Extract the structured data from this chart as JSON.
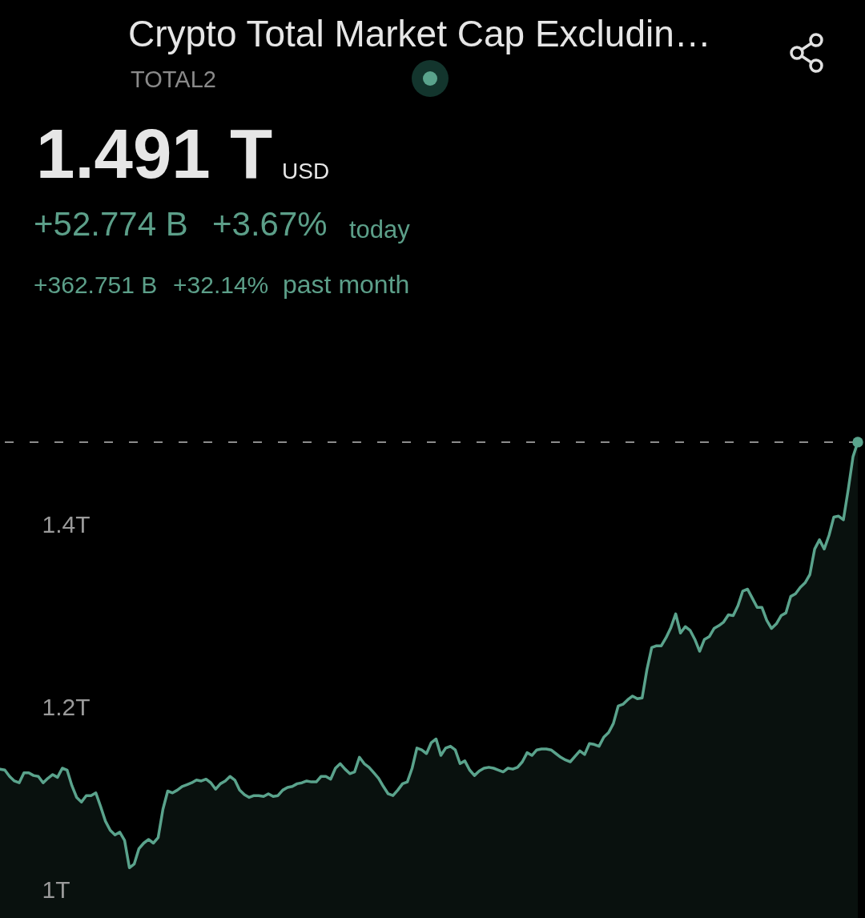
{
  "chart_data": {
    "type": "area",
    "title": "Crypto Total Market Cap Excludin…",
    "subtitle": "TOTAL2",
    "annotations": [
      "1.491 T",
      "USD",
      "+52.774 B",
      "+3.67%",
      "today",
      "+362.751 B",
      "+32.14%",
      "past month"
    ],
    "categories": [
      null,
      null,
      null,
      null,
      null,
      null,
      null,
      null,
      null,
      null,
      null,
      null,
      null,
      null,
      null,
      null,
      null,
      null,
      null,
      null,
      null,
      null,
      null,
      null,
      null,
      null,
      null,
      null,
      null,
      null,
      null,
      null,
      null,
      null,
      null,
      null,
      null,
      null,
      null,
      null,
      null,
      null,
      null,
      null,
      null,
      null,
      null,
      null,
      null,
      null,
      null,
      null,
      null,
      null,
      null,
      null,
      null,
      null,
      null,
      null,
      null,
      null,
      null,
      null,
      null,
      null,
      null,
      null,
      null,
      null,
      null,
      null,
      null,
      null,
      null,
      null,
      null,
      null,
      null,
      null,
      null,
      null,
      null,
      null,
      null,
      null,
      null,
      null,
      null,
      null,
      null,
      null,
      null,
      null,
      null,
      null,
      null,
      null,
      null,
      null,
      null,
      null,
      null,
      null,
      null,
      null,
      null,
      null,
      null,
      null,
      null,
      null,
      null,
      null,
      null,
      null,
      null,
      null,
      null,
      null,
      null,
      null,
      null,
      null,
      null,
      null,
      null,
      null,
      null,
      null,
      null,
      null,
      null,
      null,
      null,
      null,
      null,
      null,
      null,
      null,
      null,
      null,
      null,
      null,
      null,
      null,
      null,
      null,
      null,
      null,
      null,
      null,
      null,
      null,
      null,
      null,
      null,
      null,
      null,
      null,
      null,
      null,
      null,
      null,
      null,
      null,
      null,
      null,
      null,
      null,
      null,
      null,
      null,
      null,
      null,
      null,
      null,
      null,
      null,
      null
    ],
    "series": [
      {
        "color": "#5aa38c",
        "values": [
          1.133,
          1.132,
          1.125,
          1.12,
          1.118,
          1.129,
          1.129,
          1.126,
          1.125,
          1.118,
          1.123,
          1.127,
          1.124,
          1.134,
          1.132,
          1.115,
          1.102,
          1.097,
          1.104,
          1.104,
          1.107,
          1.092,
          1.076,
          1.066,
          1.061,
          1.064,
          1.055,
          1.025,
          1.029,
          1.046,
          1.052,
          1.056,
          1.052,
          1.058,
          1.089,
          1.109,
          1.107,
          1.11,
          1.114,
          1.116,
          1.118,
          1.121,
          1.12,
          1.122,
          1.118,
          1.111,
          1.117,
          1.12,
          1.125,
          1.121,
          1.11,
          1.105,
          1.102,
          1.104,
          1.104,
          1.103,
          1.106,
          1.103,
          1.104,
          1.11,
          1.113,
          1.114,
          1.117,
          1.118,
          1.12,
          1.119,
          1.119,
          1.125,
          1.125,
          1.122,
          1.134,
          1.139,
          1.133,
          1.128,
          1.13,
          1.146,
          1.139,
          1.135,
          1.129,
          1.123,
          1.114,
          1.106,
          1.104,
          1.11,
          1.117,
          1.119,
          1.134,
          1.156,
          1.154,
          1.15,
          1.162,
          1.166,
          1.148,
          1.156,
          1.158,
          1.154,
          1.139,
          1.142,
          1.132,
          1.126,
          1.131,
          1.134,
          1.135,
          1.134,
          1.132,
          1.13,
          1.134,
          1.133,
          1.135,
          1.141,
          1.151,
          1.148,
          1.154,
          1.155,
          1.155,
          1.154,
          1.15,
          1.146,
          1.143,
          1.141,
          1.147,
          1.153,
          1.149,
          1.161,
          1.16,
          1.158,
          1.168,
          1.173,
          1.183,
          1.202,
          1.204,
          1.209,
          1.213,
          1.21,
          1.211,
          1.242,
          1.266,
          1.268,
          1.268,
          1.277,
          1.288,
          1.303,
          1.282,
          1.289,
          1.285,
          1.275,
          1.262,
          1.275,
          1.278,
          1.287,
          1.29,
          1.294,
          1.302,
          1.301,
          1.312,
          1.328,
          1.33,
          1.32,
          1.31,
          1.31,
          1.296,
          1.287,
          1.292,
          1.301,
          1.304,
          1.322,
          1.325,
          1.332,
          1.337,
          1.346,
          1.374,
          1.384,
          1.374,
          1.389,
          1.409,
          1.41,
          1.406,
          1.439,
          1.475,
          1.491
        ]
      },
      {
        "type": "scatter",
        "color": "#5aa38c",
        "values": [
          null,
          null,
          null,
          null,
          null,
          null,
          null,
          null,
          null,
          null,
          null,
          null,
          null,
          null,
          null,
          null,
          null,
          null,
          null,
          null,
          null,
          null,
          null,
          null,
          null,
          null,
          null,
          null,
          null,
          null,
          null,
          null,
          null,
          null,
          null,
          null,
          null,
          null,
          null,
          null,
          null,
          null,
          null,
          null,
          null,
          null,
          null,
          null,
          null,
          null,
          null,
          null,
          null,
          null,
          null,
          null,
          null,
          null,
          null,
          null,
          null,
          null,
          null,
          null,
          null,
          null,
          null,
          null,
          null,
          null,
          null,
          null,
          null,
          null,
          null,
          null,
          null,
          null,
          null,
          null,
          null,
          null,
          null,
          null,
          null,
          null,
          null,
          null,
          null,
          null,
          null,
          null,
          null,
          null,
          null,
          null,
          null,
          null,
          null,
          null,
          null,
          null,
          null,
          null,
          null,
          null,
          null,
          null,
          null,
          null,
          null,
          null,
          null,
          null,
          null,
          null,
          null,
          null,
          null,
          null,
          null,
          null,
          null,
          null,
          null,
          null,
          null,
          null,
          null,
          null,
          null,
          null,
          null,
          null,
          null,
          null,
          null,
          null,
          null,
          null,
          null,
          null,
          null,
          null,
          null,
          null,
          null,
          null,
          null,
          null,
          null,
          null,
          null,
          null,
          null,
          null,
          null,
          null,
          null,
          null,
          null,
          null,
          null,
          null,
          null,
          null,
          null,
          null,
          null,
          null,
          null,
          null,
          null,
          null,
          null,
          null,
          null,
          null,
          null,
          1.491
        ]
      }
    ],
    "ylim": [
      0.97,
      1.975
    ],
    "yticks": [
      {
        "value": 1,
        "label": "1T"
      },
      {
        "value": 1.2,
        "label": "1.2T"
      },
      {
        "value": 1.4,
        "label": "1.4T"
      }
    ],
    "tick_labels": "y",
    "ref_lines": [
      {
        "axis": "y",
        "value": 1.491,
        "color": "#8c8c8c",
        "line_style": "dashed"
      }
    ]
  }
}
